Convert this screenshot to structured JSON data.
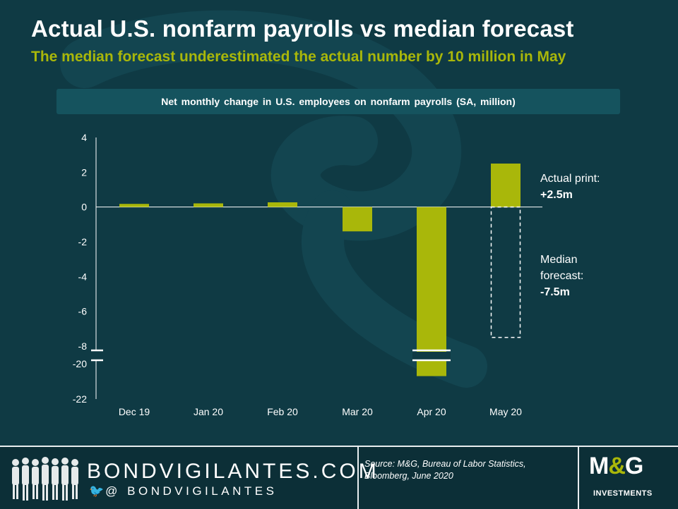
{
  "header": {
    "title": "Actual U.S. nonfarm payrolls vs median forecast",
    "subtitle": "The median forecast underestimated the actual number by 10 million in May"
  },
  "colors": {
    "background": "#0f3a44",
    "accent": "#a9b70a",
    "banner": "#15535e",
    "footer": "#0c2f37"
  },
  "chart_data": {
    "type": "bar",
    "title": "Net monthly change in U.S. employees on nonfarm payrolls (SA, million)",
    "categories": [
      "Dec 19",
      "Jan 20",
      "Feb 20",
      "Mar 20",
      "Apr 20",
      "May 20"
    ],
    "values": [
      0.18,
      0.21,
      0.27,
      -1.4,
      -20.7,
      2.5
    ],
    "series": [
      {
        "values": [
          0.18,
          0.21,
          0.27,
          -1.4,
          -20.7,
          2.5
        ]
      }
    ],
    "forecast": {
      "category": "May 20",
      "value": -7.5
    },
    "axis_break": {
      "from": -8,
      "to": -20
    },
    "yticks": [
      "4",
      "2",
      "0",
      "-2",
      "-4",
      "-6",
      "-8",
      "-20",
      "-22"
    ],
    "ylim": [
      -22,
      4
    ],
    "grid": false,
    "annotations": {
      "actual_label": "Actual print:",
      "actual_value": "+2.5m",
      "forecast_label_1": "Median",
      "forecast_label_2": "forecast:",
      "forecast_value": "-7.5m"
    }
  },
  "footer": {
    "brand": "BONDVIGILANTES.COM",
    "handle": "@ BONDVIGILANTES",
    "twitter_icon": "twitter-bird-icon",
    "source": "Source: M&G, Bureau of Labor Statistics, Bloomberg, June 2020",
    "logo_main_left": "M",
    "logo_amp": "&",
    "logo_main_right": "G",
    "logo_sub": "INVESTMENTS"
  }
}
